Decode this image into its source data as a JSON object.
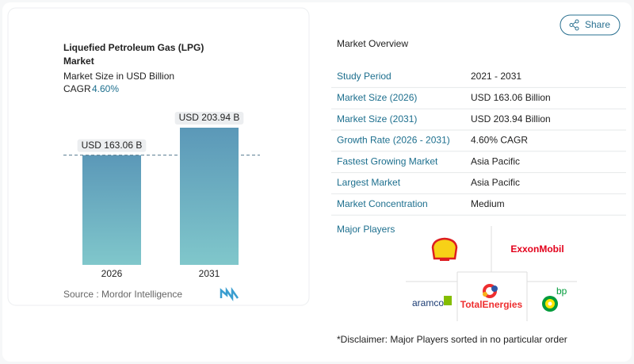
{
  "chart_card": {
    "title_lines": [
      "Liquefied Petroleum Gas (LPG)",
      "Market"
    ],
    "subtitle": "Market Size in USD Billion",
    "cagr_label": "CAGR",
    "cagr_value": "4.60%",
    "source": "Source :  Mordor Intelligence"
  },
  "chart_data": {
    "type": "bar",
    "categories": [
      "2026",
      "2031"
    ],
    "values": [
      163.06,
      203.94
    ],
    "value_labels": [
      "USD 163.06 B",
      "USD 203.94 B"
    ],
    "color": "#62a5bd"
  },
  "share": "Share",
  "overview": {
    "title": "Market Overview",
    "rows": [
      [
        "Study Period",
        "2021 - 2031"
      ],
      [
        "Market Size (2026)",
        "USD 163.06 Billion"
      ],
      [
        "Market Size (2031)",
        "USD 203.94 Billion"
      ],
      [
        "Growth Rate (2026 - 2031)",
        "4.60% CAGR"
      ],
      [
        "Fastest Growing Market",
        "Asia Pacific"
      ],
      [
        "Largest Market",
        "Asia Pacific"
      ],
      [
        "Market Concentration",
        "Medium"
      ]
    ]
  },
  "players": {
    "title": "Major Players",
    "logos": [
      "ExxonMobil",
      "TotalEnergies",
      "aramco",
      "bp"
    ]
  },
  "disclaimer": "*Disclaimer: Major Players sorted in no particular order"
}
